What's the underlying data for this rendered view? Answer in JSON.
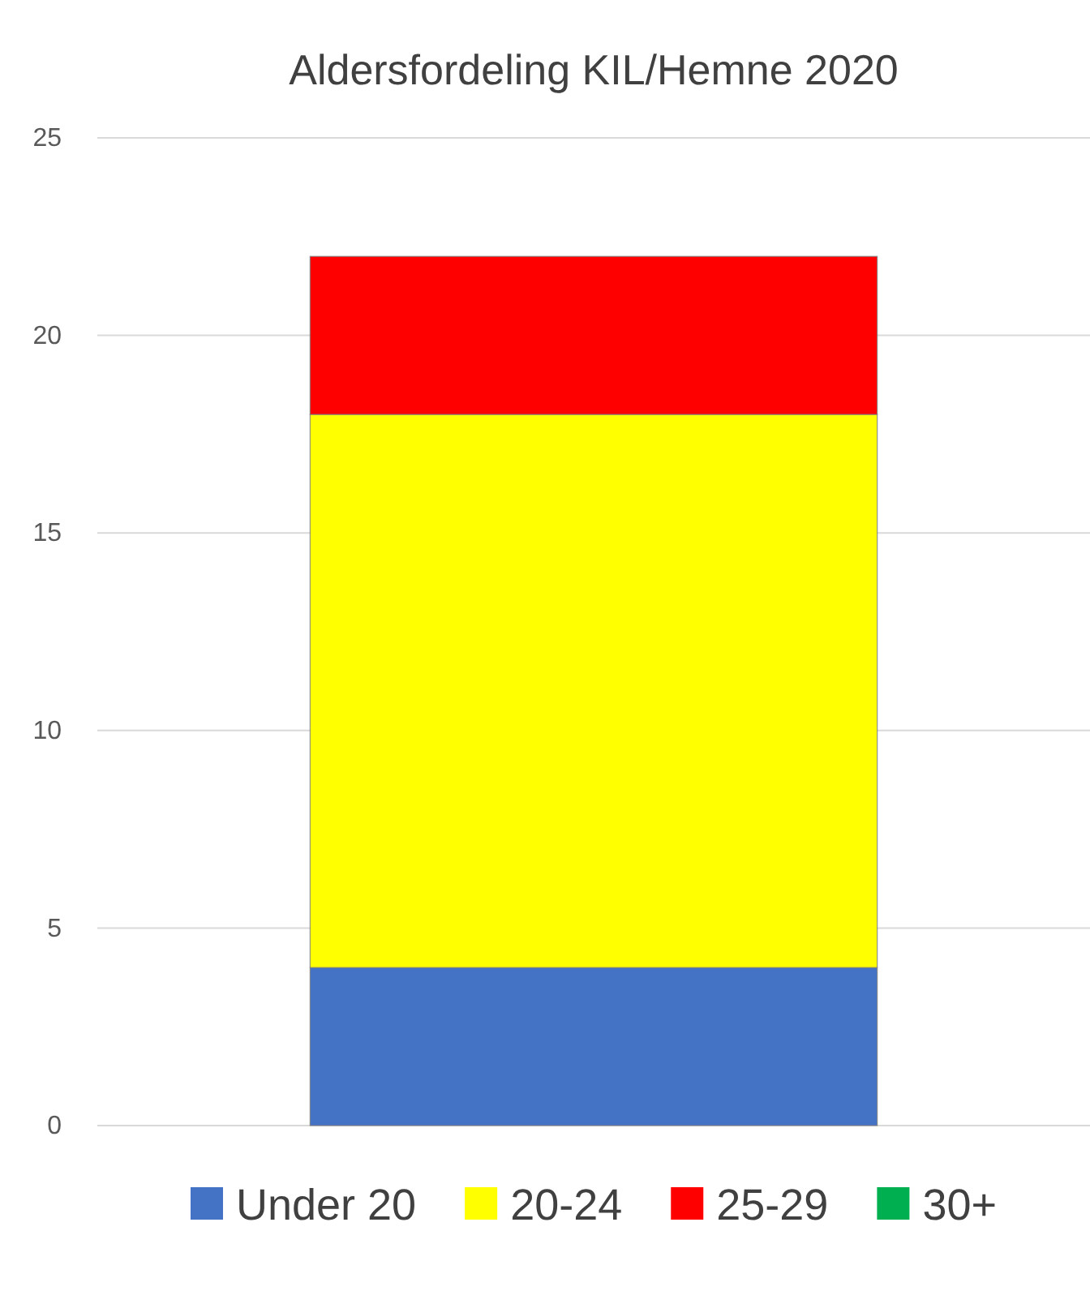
{
  "chart_data": {
    "type": "bar",
    "title": "Aldersfordeling KIL/Hemne 2020",
    "categories": [
      null
    ],
    "stacked": true,
    "series": [
      {
        "name": "Under 20",
        "color": "#4472c4",
        "values": [
          4
        ]
      },
      {
        "name": "20-24",
        "color": "#ffff00",
        "values": [
          14
        ]
      },
      {
        "name": "25-29",
        "color": "#ff0000",
        "values": [
          4
        ]
      },
      {
        "name": "30+",
        "color": "#00b050",
        "values": [
          0
        ]
      }
    ],
    "ylim": [
      0,
      25
    ],
    "yticks": [
      0,
      5,
      10,
      15,
      20,
      25
    ],
    "grid": "y",
    "legend": "bottom"
  }
}
